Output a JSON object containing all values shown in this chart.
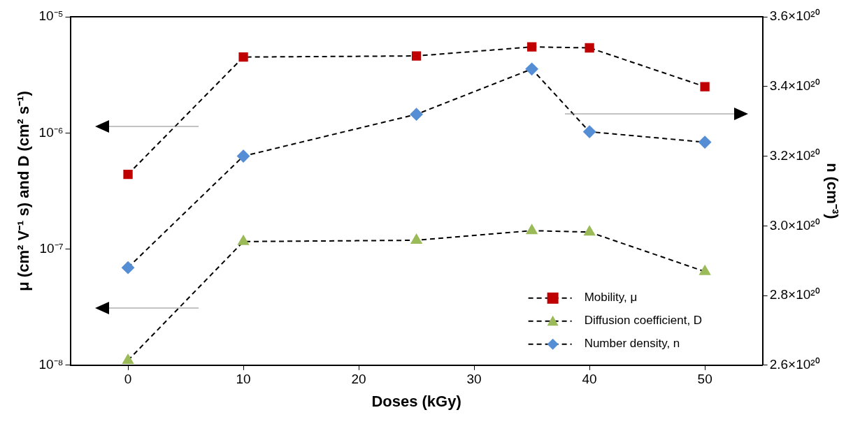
{
  "chart_data": {
    "type": "line",
    "xlabel": "Doses (kGy)",
    "ylabel": "μ (cm² V⁻¹ s) and D (cm² s⁻¹)",
    "y2label": "n (cm⁻³)",
    "x": [
      0,
      10,
      25,
      35,
      40,
      50
    ],
    "xlim": [
      -5,
      55
    ],
    "xticks": [
      0,
      10,
      20,
      30,
      40,
      50
    ],
    "ylim": [
      1e-08,
      1e-05
    ],
    "yticks": [
      {
        "value": 1e-08,
        "label": "10⁻⁸"
      },
      {
        "value": 1e-07,
        "label": "10⁻⁷"
      },
      {
        "value": 1e-06,
        "label": "10⁻⁶"
      },
      {
        "value": 1e-05,
        "label": "10⁻⁵"
      }
    ],
    "y2lim": [
      2.6e+20,
      3.6e+20
    ],
    "y2ticks": [
      {
        "value": 2.6e+20,
        "label": "2.6×10²⁰"
      },
      {
        "value": 2.8e+20,
        "label": "2.8×10²⁰"
      },
      {
        "value": 3e+20,
        "label": "3.0×10²⁰"
      },
      {
        "value": 3.2e+20,
        "label": "3.2×10²⁰"
      },
      {
        "value": 3.4e+20,
        "label": "3.4×10²⁰"
      },
      {
        "value": 3.6e+20,
        "label": "3.6×10²⁰"
      }
    ],
    "log": "y",
    "grid": false,
    "legend": "bottom right",
    "line_style": "dashed",
    "series": [
      {
        "name": "Mobility, μ",
        "color": "#c00000",
        "marker": "square",
        "values": [
          4.4e-07,
          4.5e-06,
          4.6e-06,
          5.5e-06,
          5.4e-06,
          2.5e-06
        ]
      },
      {
        "name": "Diffusion coefficient, D",
        "color": "#9bbb59",
        "marker": "triangle",
        "values": [
          1.1e-08,
          1.16e-07,
          1.19e-07,
          1.44e-07,
          1.4e-07,
          6.4e-08
        ]
      },
      {
        "name": "Number density, n",
        "color": "#558ed5",
        "marker": "diamond",
        "axis": "y2",
        "values": [
          2.88e+20,
          3.2e+20,
          3.32e+20,
          3.45e+20,
          3.27e+20,
          3.24e+20
        ]
      }
    ]
  }
}
